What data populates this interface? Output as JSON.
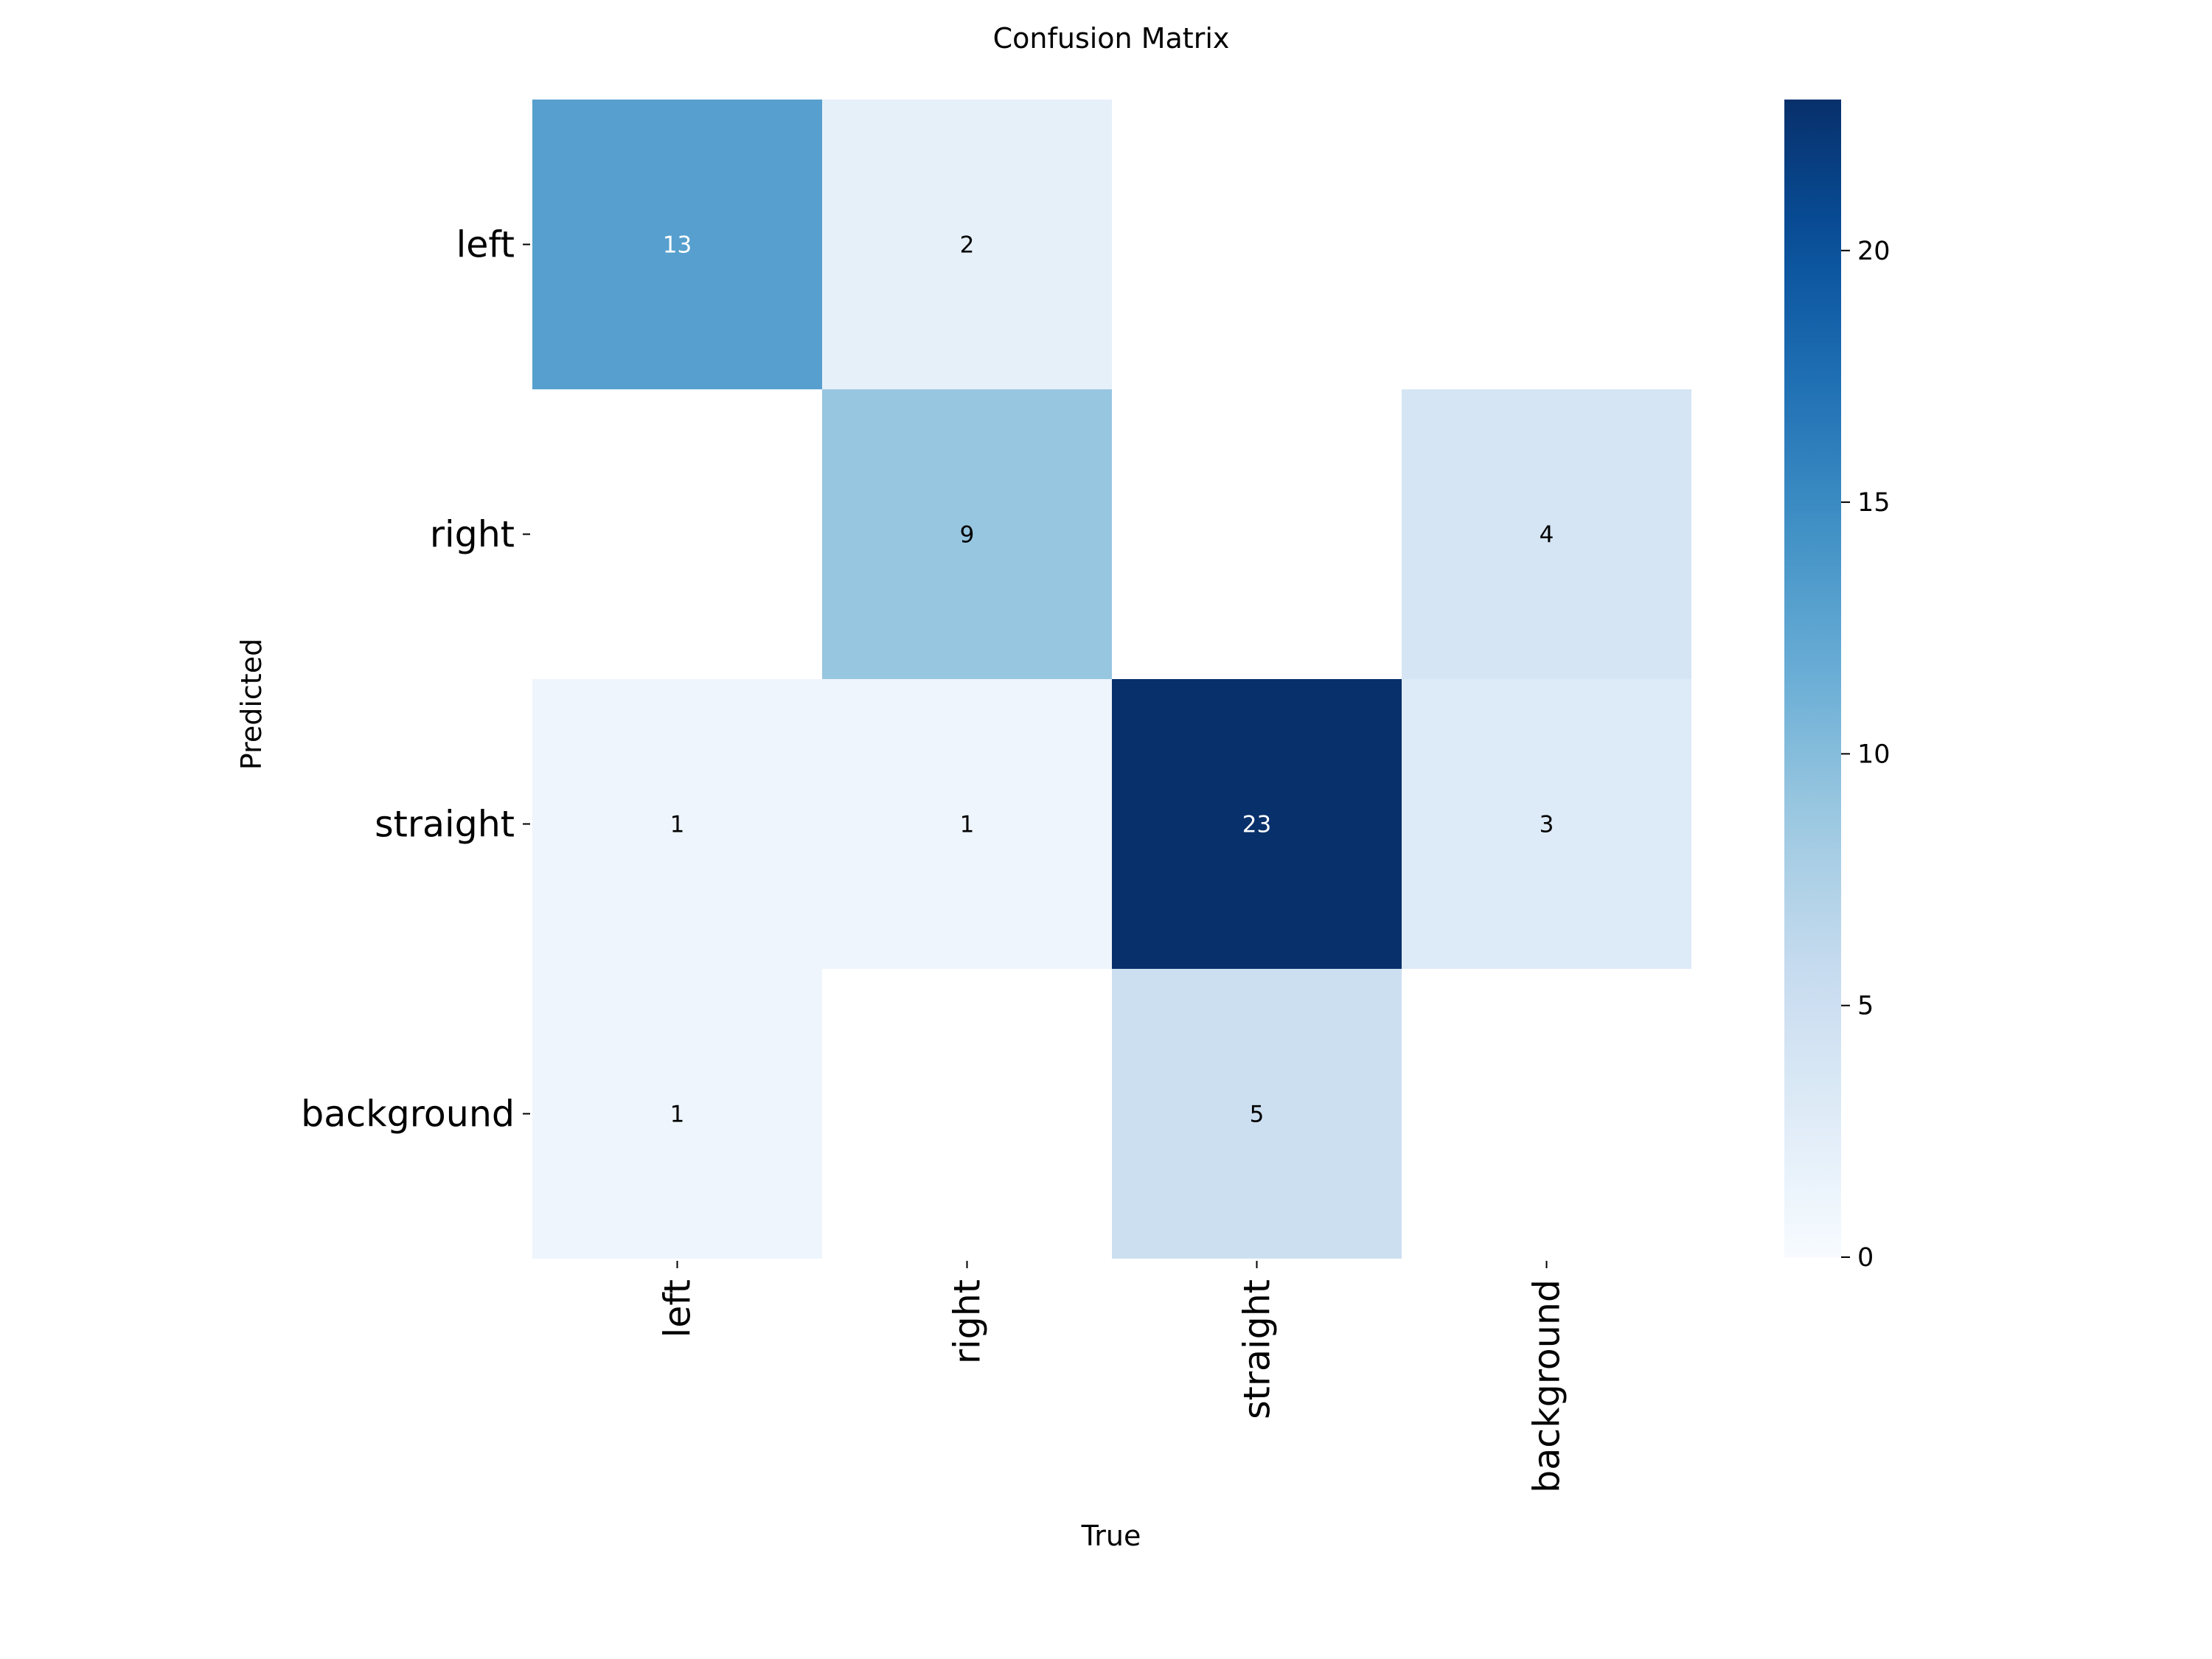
{
  "chart_data": {
    "type": "heatmap",
    "title": "Confusion Matrix",
    "xlabel": "True",
    "ylabel": "Predicted",
    "row_labels": [
      "left",
      "right",
      "straight",
      "background"
    ],
    "col_labels": [
      "left",
      "right",
      "straight",
      "background"
    ],
    "values": [
      [
        13,
        2,
        null,
        null
      ],
      [
        null,
        9,
        null,
        4
      ],
      [
        1,
        1,
        23,
        3
      ],
      [
        1,
        null,
        5,
        null
      ]
    ],
    "colorbar": {
      "min": 0,
      "max": 23,
      "ticks": [
        0,
        5,
        10,
        15,
        20
      ],
      "colormap": "Blues"
    }
  }
}
